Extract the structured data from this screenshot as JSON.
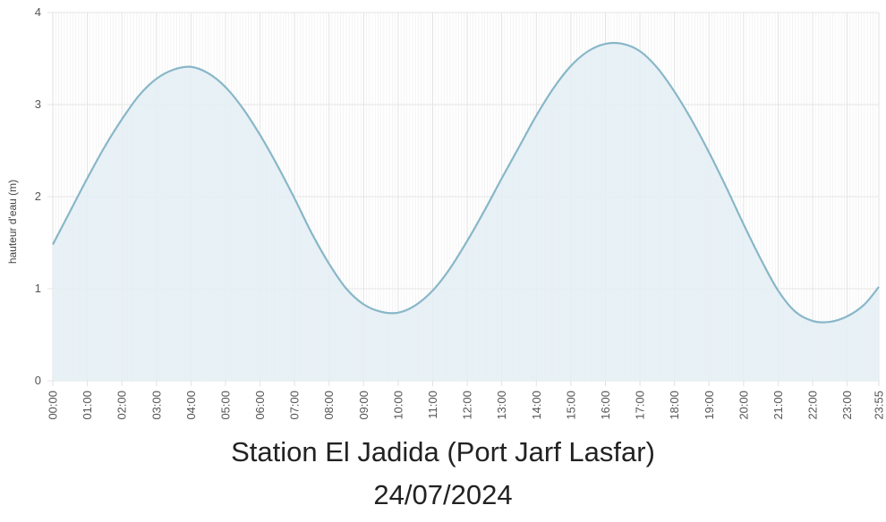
{
  "chart_data": {
    "type": "area",
    "title": "Station El Jadida (Port Jarf Lasfar)",
    "subtitle": "24/07/2024",
    "ylabel": "hauteur d'eau (m)",
    "xlabel": "",
    "ylim": [
      0,
      4
    ],
    "y_ticks": [
      "0",
      "1",
      "2",
      "3",
      "4"
    ],
    "x_ticks": [
      "00:00",
      "01:00",
      "02:00",
      "03:00",
      "04:00",
      "05:00",
      "06:00",
      "07:00",
      "08:00",
      "09:00",
      "10:00",
      "11:00",
      "12:00",
      "13:00",
      "14:00",
      "15:00",
      "16:00",
      "17:00",
      "18:00",
      "19:00",
      "20:00",
      "21:00",
      "22:00",
      "23:00",
      "23:55"
    ],
    "grid": true,
    "colors": {
      "line": "#88b7c8",
      "fill": "#e4eef5",
      "grid": "#e6e6e6"
    },
    "series": [
      {
        "x": [
          "00:00",
          "00:30",
          "01:00",
          "01:30",
          "02:00",
          "02:30",
          "03:00",
          "03:30",
          "04:00",
          "04:30",
          "05:00",
          "05:30",
          "06:00",
          "06:30",
          "07:00",
          "07:30",
          "08:00",
          "08:30",
          "09:00",
          "09:30",
          "10:00",
          "10:30",
          "11:00",
          "11:30",
          "12:00",
          "12:30",
          "13:00",
          "13:30",
          "14:00",
          "14:30",
          "15:00",
          "15:30",
          "16:00",
          "16:30",
          "17:00",
          "17:30",
          "18:00",
          "18:30",
          "19:00",
          "19:30",
          "20:00",
          "20:30",
          "21:00",
          "21:30",
          "22:00",
          "22:30",
          "23:00",
          "23:30",
          "23:55"
        ],
        "y": [
          1.48,
          1.84,
          2.2,
          2.54,
          2.84,
          3.1,
          3.28,
          3.38,
          3.41,
          3.34,
          3.19,
          2.96,
          2.67,
          2.34,
          1.98,
          1.6,
          1.27,
          1.0,
          0.83,
          0.75,
          0.74,
          0.82,
          0.98,
          1.22,
          1.52,
          1.85,
          2.2,
          2.54,
          2.88,
          3.18,
          3.42,
          3.58,
          3.66,
          3.66,
          3.58,
          3.4,
          3.14,
          2.83,
          2.48,
          2.1,
          1.7,
          1.32,
          0.98,
          0.75,
          0.65,
          0.64,
          0.7,
          0.83,
          1.02
        ]
      }
    ]
  }
}
